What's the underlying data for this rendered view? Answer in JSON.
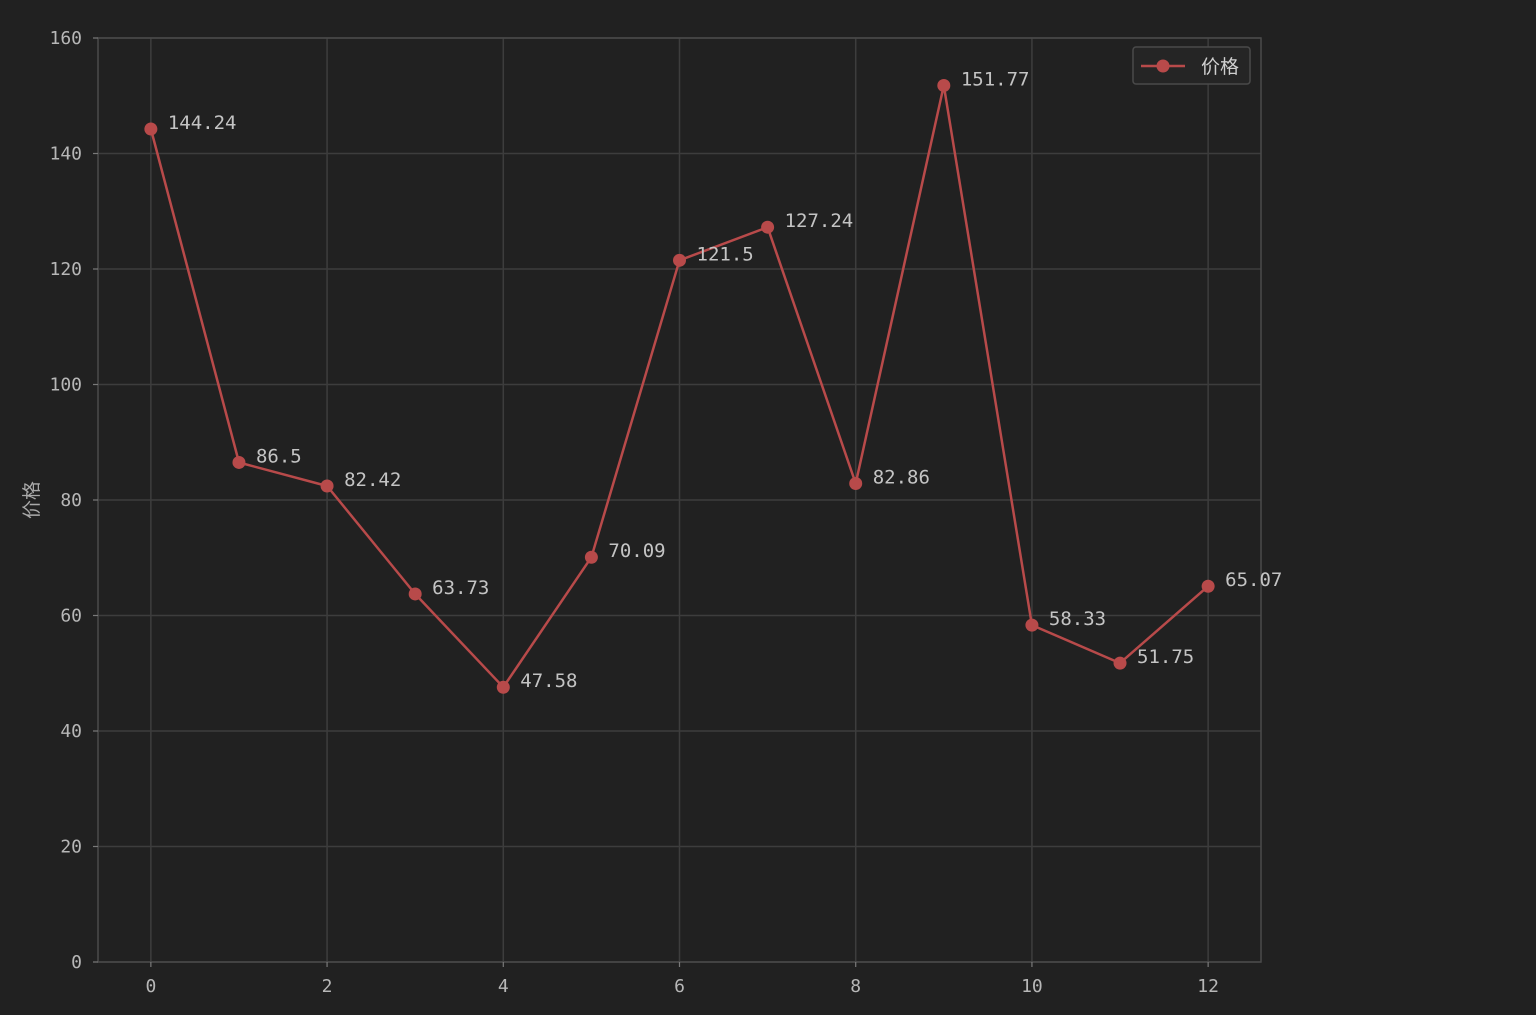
{
  "chart_data": {
    "type": "line",
    "title": "",
    "xlabel": "",
    "ylabel": "价格",
    "xlim": [
      -0.6,
      12.6
    ],
    "ylim": [
      0,
      160
    ],
    "xticks": [
      0,
      2,
      4,
      6,
      8,
      10,
      12
    ],
    "yticks": [
      0,
      20,
      40,
      60,
      80,
      100,
      120,
      140,
      160
    ],
    "grid": true,
    "legend_position": "top-right",
    "series": [
      {
        "name": "价格",
        "color": "#b84a4a",
        "marker": "circle",
        "x": [
          0,
          1,
          2,
          3,
          4,
          5,
          6,
          7,
          8,
          9,
          10,
          11,
          12
        ],
        "values": [
          144.24,
          86.5,
          82.42,
          63.73,
          47.58,
          70.09,
          121.5,
          127.24,
          82.86,
          151.77,
          58.33,
          51.75,
          65.07
        ],
        "labels": [
          "144.24",
          "86.5",
          "82.42",
          "63.73",
          "47.58",
          "70.09",
          "121.5",
          "127.24",
          "82.86",
          "151.77",
          "58.33",
          "51.75",
          "65.07"
        ]
      }
    ]
  }
}
